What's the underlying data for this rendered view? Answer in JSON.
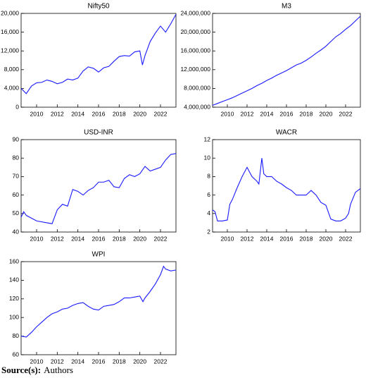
{
  "chart_data": [
    {
      "type": "line",
      "title": "Nifty50",
      "color": "#1a1aff",
      "x": [
        2008.5,
        2009.0,
        2009.5,
        2010.0,
        2010.5,
        2011.0,
        2011.5,
        2012.0,
        2012.5,
        2013.0,
        2013.5,
        2014.0,
        2014.5,
        2015.0,
        2015.5,
        2016.0,
        2016.5,
        2017.0,
        2017.5,
        2018.0,
        2018.5,
        2019.0,
        2019.5,
        2020.0,
        2020.25,
        2020.5,
        2021.0,
        2021.5,
        2022.0,
        2022.5,
        2023.0,
        2023.5
      ],
      "values": [
        4000,
        2900,
        4500,
        5200,
        5300,
        5800,
        5500,
        5000,
        5300,
        6000,
        5800,
        6200,
        7700,
        8600,
        8300,
        7500,
        8400,
        8700,
        9800,
        10800,
        11000,
        10900,
        11800,
        12000,
        9000,
        11000,
        14000,
        15800,
        17300,
        16000,
        17800,
        19800
      ],
      "xlim": [
        2008.5,
        2023.5
      ],
      "xticks": [
        2010,
        2012,
        2014,
        2016,
        2018,
        2020,
        2022
      ],
      "ylim": [
        0,
        20000
      ],
      "yticks": [
        0,
        {
          "value": 4000,
          "label": "4,000"
        },
        {
          "value": 8000,
          "label": "8,000"
        },
        {
          "value": 12000,
          "label": "12,000"
        },
        {
          "value": 16000,
          "label": "16,000"
        },
        {
          "value": 20000,
          "label": "20,000"
        }
      ]
    },
    {
      "type": "line",
      "title": "M3",
      "color": "#1a1aff",
      "x": [
        2008.5,
        2009.0,
        2009.5,
        2010.0,
        2010.5,
        2011.0,
        2011.5,
        2012.0,
        2012.5,
        2013.0,
        2013.5,
        2014.0,
        2014.5,
        2015.0,
        2015.5,
        2016.0,
        2016.5,
        2017.0,
        2017.5,
        2018.0,
        2018.5,
        2019.0,
        2019.5,
        2020.0,
        2020.5,
        2021.0,
        2021.5,
        2022.0,
        2022.5,
        2023.0,
        2023.5
      ],
      "values": [
        4400000,
        4800000,
        5200000,
        5600000,
        6000000,
        6500000,
        7000000,
        7500000,
        8000000,
        8600000,
        9100000,
        9700000,
        10200000,
        10800000,
        11300000,
        11800000,
        12400000,
        13000000,
        13400000,
        14000000,
        14700000,
        15500000,
        16200000,
        17000000,
        18000000,
        19000000,
        19700000,
        20600000,
        21400000,
        22400000,
        23400000
      ],
      "xlim": [
        2008.5,
        2023.5
      ],
      "xticks": [
        2010,
        2012,
        2014,
        2016,
        2018,
        2020,
        2022
      ],
      "ylim": [
        4000000,
        24000000
      ],
      "yticks": [
        {
          "value": 4000000,
          "label": "4,000,000"
        },
        {
          "value": 8000000,
          "label": "8,000,000"
        },
        {
          "value": 12000000,
          "label": "12,000,000"
        },
        {
          "value": 16000000,
          "label": "16,000,000"
        },
        {
          "value": 20000000,
          "label": "20,000,000"
        },
        {
          "value": 24000000,
          "label": "24,000,000"
        }
      ]
    },
    {
      "type": "line",
      "title": "USD-INR",
      "color": "#1a1aff",
      "x": [
        2008.5,
        2008.75,
        2009.0,
        2010.0,
        2011.0,
        2011.5,
        2012.0,
        2012.5,
        2013.0,
        2013.5,
        2014.0,
        2014.5,
        2015.0,
        2015.5,
        2016.0,
        2016.5,
        2017.0,
        2017.5,
        2018.0,
        2018.5,
        2019.0,
        2019.5,
        2020.0,
        2020.5,
        2021.0,
        2021.5,
        2022.0,
        2022.5,
        2023.0,
        2023.5
      ],
      "values": [
        48,
        51,
        49,
        46,
        45,
        44.5,
        52,
        55,
        54,
        63,
        62,
        60,
        62.5,
        64,
        67,
        67,
        68,
        64.5,
        64,
        69,
        71,
        70,
        71.5,
        75.5,
        73,
        74,
        75,
        79,
        82,
        82.5
      ],
      "xlim": [
        2008.5,
        2023.5
      ],
      "xticks": [
        2010,
        2012,
        2014,
        2016,
        2018,
        2020,
        2022
      ],
      "ylim": [
        40,
        90
      ],
      "yticks": [
        40,
        50,
        60,
        70,
        80,
        90
      ]
    },
    {
      "type": "line",
      "title": "WACR",
      "color": "#1a1aff",
      "x": [
        2008.5,
        2008.75,
        2009.0,
        2009.5,
        2010.0,
        2010.25,
        2010.5,
        2011.0,
        2011.5,
        2012.0,
        2012.5,
        2013.0,
        2013.2,
        2013.5,
        2013.7,
        2014.0,
        2014.5,
        2015.0,
        2015.5,
        2016.0,
        2016.5,
        2017.0,
        2017.5,
        2018.0,
        2018.5,
        2019.0,
        2019.5,
        2020.0,
        2020.3,
        2020.5,
        2021.0,
        2021.5,
        2022.0,
        2022.3,
        2022.5,
        2023.0,
        2023.5
      ],
      "values": [
        4.4,
        4.2,
        3.2,
        3.2,
        3.3,
        5,
        5.5,
        6.8,
        8,
        9,
        8,
        7.5,
        7.2,
        10,
        8.3,
        8,
        8,
        7.5,
        7.2,
        6.8,
        6.5,
        6,
        6,
        6,
        6.5,
        6,
        5.2,
        4.9,
        4,
        3.4,
        3.2,
        3.2,
        3.5,
        4,
        5,
        6.3,
        6.7
      ],
      "xlim": [
        2008.5,
        2023.5
      ],
      "xticks": [
        2010,
        2012,
        2014,
        2016,
        2018,
        2020,
        2022
      ],
      "ylim": [
        2,
        12
      ],
      "yticks": [
        2,
        4,
        6,
        8,
        10,
        12
      ]
    },
    {
      "type": "line",
      "title": "WPI",
      "color": "#1a1aff",
      "x": [
        2008.5,
        2009.0,
        2009.5,
        2010.0,
        2010.5,
        2011.0,
        2011.5,
        2012.0,
        2012.5,
        2013.0,
        2013.5,
        2014.0,
        2014.5,
        2015.0,
        2015.5,
        2016.0,
        2016.5,
        2017.0,
        2017.5,
        2018.0,
        2018.5,
        2019.0,
        2019.5,
        2020.0,
        2020.3,
        2020.5,
        2021.0,
        2021.5,
        2022.0,
        2022.3,
        2022.5,
        2023.0,
        2023.5
      ],
      "values": [
        80,
        79,
        84,
        90,
        95,
        100,
        104,
        106,
        109,
        110,
        113,
        115,
        116,
        112,
        109,
        108,
        112,
        113,
        114,
        117,
        121,
        121,
        122,
        123,
        117,
        121,
        128,
        136,
        146,
        155,
        152,
        150,
        151
      ],
      "xlim": [
        2008.5,
        2023.5
      ],
      "xticks": [
        2010,
        2012,
        2014,
        2016,
        2018,
        2020,
        2022
      ],
      "ylim": [
        60,
        160
      ],
      "yticks": [
        60,
        80,
        100,
        120,
        140,
        160
      ]
    }
  ],
  "source": {
    "label": "Source(s):",
    "text": "Authors"
  }
}
